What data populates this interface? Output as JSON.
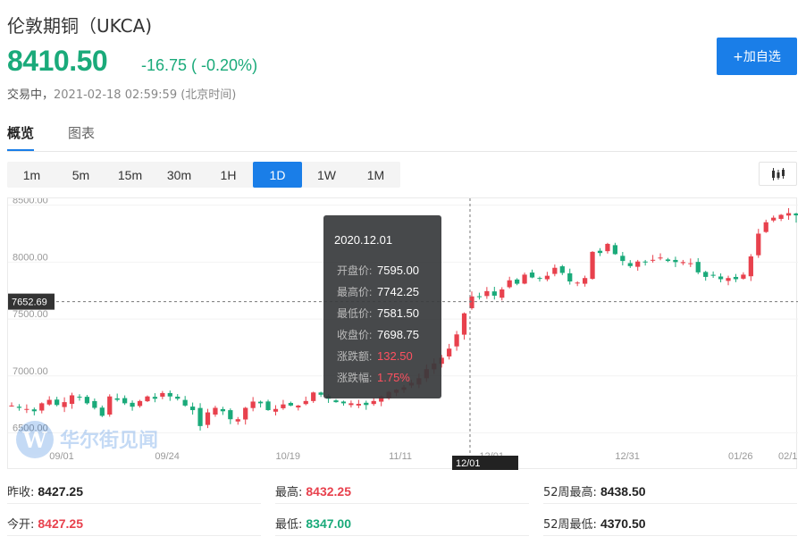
{
  "header": {
    "title": "伦敦期铜（UKCA)",
    "price": "8410.50",
    "change": "-16.75 ( -0.20%)",
    "status": "交易中，",
    "timestamp": "2021-02-18 02:59:59 (北京时间)",
    "add_label": "+加自选"
  },
  "tabs": [
    {
      "label": "概览",
      "active": true
    },
    {
      "label": "图表",
      "active": false
    }
  ],
  "periods": [
    {
      "label": "1m",
      "active": false
    },
    {
      "label": "5m",
      "active": false
    },
    {
      "label": "15m",
      "active": false
    },
    {
      "label": "30m",
      "active": false
    },
    {
      "label": "1H",
      "active": false
    },
    {
      "label": "1D",
      "active": true
    },
    {
      "label": "1W",
      "active": false
    },
    {
      "label": "1M",
      "active": false
    }
  ],
  "colors": {
    "up": "#e8414d",
    "down": "#1aaa7a",
    "accent": "#1a7ee8"
  },
  "watermark": {
    "text": "华尔街见闻",
    "logo": "W"
  },
  "crosshair": {
    "price_label": "7652.69",
    "date_label": "12/01"
  },
  "tooltip": {
    "date": "2020.12.01",
    "rows": [
      {
        "label": "开盘价:",
        "value": "7595.00",
        "color": "neutral"
      },
      {
        "label": "最高价:",
        "value": "7742.25",
        "color": "neutral"
      },
      {
        "label": "最低价:",
        "value": "7581.50",
        "color": "neutral"
      },
      {
        "label": "收盘价:",
        "value": "7698.75",
        "color": "neutral"
      },
      {
        "label": "涨跌额:",
        "value": "132.50",
        "color": "up"
      },
      {
        "label": "涨跌幅:",
        "value": "1.75%",
        "color": "up"
      }
    ]
  },
  "stats": {
    "prev_close": {
      "label": "昨收:",
      "value": "8427.25",
      "color": "neutral"
    },
    "open": {
      "label": "今开:",
      "value": "8427.25",
      "color": "up"
    },
    "high": {
      "label": "最高:",
      "value": "8432.25",
      "color": "up"
    },
    "low": {
      "label": "最低:",
      "value": "8347.00",
      "color": "down"
    },
    "w52_high": {
      "label": "52周最高:",
      "value": "8438.50",
      "color": "neutral"
    },
    "w52_low": {
      "label": "52周最低:",
      "value": "4370.50",
      "color": "neutral"
    }
  },
  "chart_data": {
    "type": "candlestick",
    "ylim": [
      6300,
      8560
    ],
    "y_ticks": [
      "8500.00",
      "8000.00",
      "7500.00",
      "7000.00",
      "6500.00"
    ],
    "x_ticks": [
      "09/01",
      "09/24",
      "10/19",
      "11/11",
      "12/01",
      "12/31",
      "01/26",
      "02/1"
    ],
    "crosshair_value": 7652.69,
    "crosshair_index": 61,
    "closes": [
      6740,
      6720,
      6710,
      6690,
      6760,
      6790,
      6745,
      6770,
      6830,
      6810,
      6760,
      6720,
      6650,
      6820,
      6790,
      6760,
      6730,
      6780,
      6820,
      6800,
      6850,
      6820,
      6800,
      6740,
      6700,
      6560,
      6680,
      6720,
      6690,
      6620,
      6620,
      6720,
      6775,
      6760,
      6700,
      6710,
      6750,
      6740,
      6740,
      6780,
      6855,
      6835,
      6800,
      6770,
      6760,
      6760,
      6755,
      6745,
      6780,
      6820,
      6860,
      6880,
      6900,
      6940,
      6980,
      7060,
      7110,
      7160,
      7240,
      7365,
      7550,
      7698,
      7692,
      7745,
      7705,
      7760,
      7840,
      7810,
      7890,
      7865,
      7860,
      7880,
      7950,
      7905,
      7830,
      7820,
      7860,
      8090,
      8080,
      8160,
      8070,
      8010,
      7965,
      8005,
      8000,
      8020,
      8040,
      8010,
      8000,
      8000,
      7990,
      7910,
      7870,
      7880,
      7850,
      7860,
      7850,
      7890,
      8050,
      8250,
      8350,
      8390,
      8415,
      8430,
      8410
    ],
    "last": {
      "open": 8427.25,
      "high": 8432.25,
      "low": 8347.0,
      "close": 8410.5
    }
  }
}
